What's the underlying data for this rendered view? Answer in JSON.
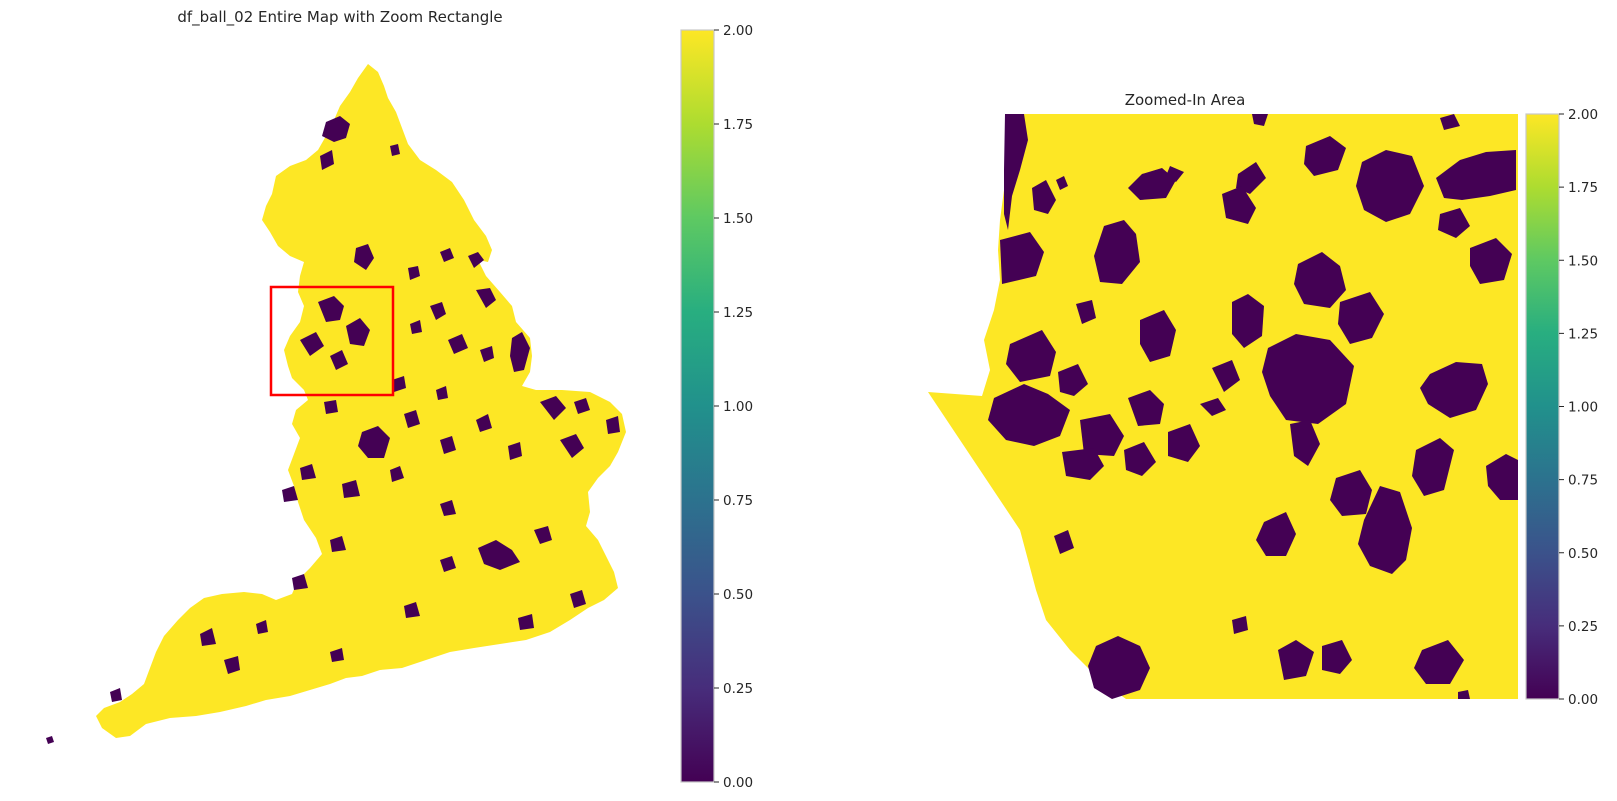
{
  "figure": {
    "left_panel": {
      "title": "df_ball_02 Entire Map with Zoom Rectangle",
      "zoom_rect_color": "#ff0000"
    },
    "right_panel": {
      "title": "Zoomed-In Area"
    }
  },
  "colorbar": {
    "colormap": "viridis",
    "low_color": "#440154",
    "high_color": "#fde725",
    "range": [
      0.0,
      2.0
    ],
    "ticks": [
      "0.00",
      "0.25",
      "0.50",
      "0.75",
      "1.00",
      "1.25",
      "1.50",
      "1.75",
      "2.00"
    ]
  },
  "chart_data": [
    {
      "type": "heatmap",
      "title": "df_ball_02 Entire Map with Zoom Rectangle",
      "value_range": [
        0.0,
        2.0
      ],
      "categories_present": [
        0,
        2
      ],
      "dominant_value": 2,
      "colorbar_ticks": [
        0.0,
        0.25,
        0.5,
        0.75,
        1.0,
        1.25,
        1.5,
        1.75,
        2.0
      ],
      "annotation": "red zoom rectangle"
    },
    {
      "type": "heatmap",
      "title": "Zoomed-In Area",
      "value_range": [
        0.0,
        2.0
      ],
      "categories_present": [
        0,
        2
      ],
      "dominant_value": 2,
      "colorbar_ticks": [
        0.0,
        0.25,
        0.5,
        0.75,
        1.0,
        1.25,
        1.5,
        1.75,
        2.0
      ]
    }
  ]
}
